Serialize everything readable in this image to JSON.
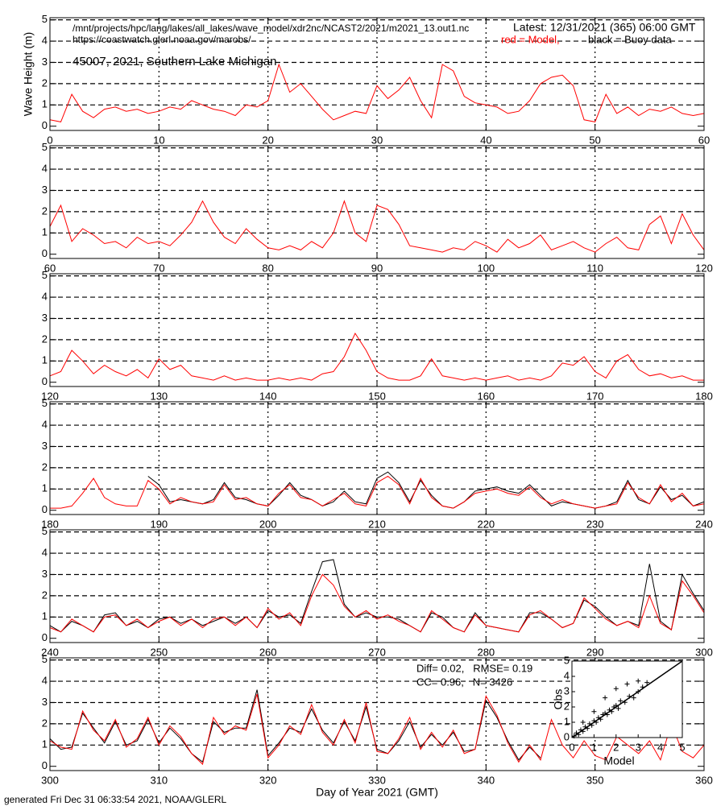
{
  "header": {
    "path": "/mnt/projects/hpc/lang/lakes/all_lakes/wave_model/xdr2nc/NCAST2/2021/m2021_13.out1.nc",
    "url": "https://coastwatch.glerl.noaa.gov/marobs/",
    "station": "45007, 2021, Southern Lake Michigan",
    "latest": "Latest: 12/31/2021 (365) 06:00 GMT",
    "legend_model": "red = Model,",
    "legend_buoy": "black = Buoy data"
  },
  "footer": "generated Fri Dec 31 06:33:54 2021, NOAA/GLERL",
  "chart_data": [
    {
      "type": "line",
      "ylabel": "Wave Height (m)",
      "xlim": [
        0,
        60
      ],
      "xticks": [
        0,
        10,
        20,
        30,
        40,
        50,
        60
      ],
      "ylim": [
        -0.2,
        5.1
      ],
      "yticks": [
        0,
        1,
        2,
        3,
        4,
        5
      ],
      "grid": true,
      "x": [
        0,
        1,
        2,
        3,
        4,
        5,
        6,
        7,
        8,
        9,
        10,
        11,
        12,
        13,
        14,
        15,
        16,
        17,
        18,
        19,
        20,
        21,
        22,
        23,
        24,
        25,
        26,
        27,
        28,
        29,
        30,
        31,
        32,
        33,
        34,
        35,
        36,
        37,
        38,
        39,
        40,
        41,
        42,
        43,
        44,
        45,
        46,
        47,
        48,
        49,
        50,
        51,
        52,
        53,
        54,
        55,
        56,
        57,
        58,
        59,
        60
      ],
      "series": [
        {
          "color": "#ff0000",
          "values": [
            0.3,
            0.2,
            1.5,
            0.7,
            0.4,
            0.8,
            0.9,
            0.7,
            0.8,
            0.6,
            0.7,
            0.9,
            0.8,
            1.2,
            1.0,
            0.8,
            0.7,
            0.5,
            1.0,
            0.9,
            1.2,
            2.9,
            1.6,
            2.0,
            1.4,
            0.8,
            0.3,
            0.5,
            0.7,
            0.6,
            1.9,
            1.3,
            1.7,
            2.3,
            1.2,
            0.4,
            2.9,
            2.6,
            1.4,
            1.1,
            1.0,
            0.9,
            0.6,
            0.7,
            1.2,
            2.0,
            2.3,
            2.4,
            1.9,
            0.3,
            0.2,
            1.5,
            0.6,
            0.9,
            0.5,
            0.8,
            0.7,
            0.9,
            0.6,
            0.5,
            0.6
          ]
        }
      ]
    },
    {
      "type": "line",
      "xlim": [
        60,
        120
      ],
      "xticks": [
        60,
        70,
        80,
        90,
        100,
        110,
        120
      ],
      "ylim": [
        -0.2,
        5.1
      ],
      "yticks": [
        0,
        1,
        2,
        3,
        4,
        5
      ],
      "grid": true,
      "x": [
        60,
        61,
        62,
        63,
        64,
        65,
        66,
        67,
        68,
        69,
        70,
        71,
        72,
        73,
        74,
        75,
        76,
        77,
        78,
        79,
        80,
        81,
        82,
        83,
        84,
        85,
        86,
        87,
        88,
        89,
        90,
        91,
        92,
        93,
        94,
        95,
        96,
        97,
        98,
        99,
        100,
        101,
        102,
        103,
        104,
        105,
        106,
        107,
        108,
        109,
        110,
        111,
        112,
        113,
        114,
        115,
        116,
        117,
        118,
        119,
        120
      ],
      "series": [
        {
          "color": "#ff0000",
          "values": [
            1.3,
            2.3,
            0.6,
            1.2,
            0.9,
            0.5,
            0.6,
            0.3,
            0.8,
            0.5,
            0.6,
            0.4,
            0.9,
            1.5,
            2.5,
            1.5,
            0.8,
            0.5,
            1.2,
            0.7,
            0.3,
            0.2,
            0.4,
            0.2,
            0.6,
            0.3,
            1.0,
            2.5,
            1.0,
            0.6,
            2.3,
            2.1,
            1.4,
            0.4,
            0.3,
            0.2,
            0.1,
            0.3,
            0.2,
            0.6,
            0.4,
            0.1,
            0.7,
            0.3,
            0.5,
            0.9,
            0.2,
            0.4,
            0.6,
            0.3,
            0.1,
            0.5,
            0.8,
            0.3,
            0.2,
            1.4,
            1.8,
            0.5,
            1.9,
            0.9,
            0.2
          ]
        }
      ]
    },
    {
      "type": "line",
      "xlim": [
        120,
        180
      ],
      "xticks": [
        120,
        130,
        140,
        150,
        160,
        170,
        180
      ],
      "ylim": [
        -0.2,
        5.1
      ],
      "yticks": [
        0,
        1,
        2,
        3,
        4,
        5
      ],
      "grid": true,
      "x": [
        120,
        121,
        122,
        123,
        124,
        125,
        126,
        127,
        128,
        129,
        130,
        131,
        132,
        133,
        134,
        135,
        136,
        137,
        138,
        139,
        140,
        141,
        142,
        143,
        144,
        145,
        146,
        147,
        148,
        149,
        150,
        151,
        152,
        153,
        154,
        155,
        156,
        157,
        158,
        159,
        160,
        161,
        162,
        163,
        164,
        165,
        166,
        167,
        168,
        169,
        170,
        171,
        172,
        173,
        174,
        175,
        176,
        177,
        178,
        179,
        180
      ],
      "series": [
        {
          "color": "#ff0000",
          "values": [
            0.3,
            0.5,
            1.5,
            1.0,
            0.4,
            0.8,
            0.5,
            0.3,
            0.6,
            0.2,
            1.1,
            0.6,
            0.8,
            0.3,
            0.2,
            0.1,
            0.3,
            0.1,
            0.2,
            0.1,
            0.1,
            0.2,
            0.1,
            0.2,
            0.1,
            0.4,
            0.5,
            1.2,
            2.3,
            1.5,
            0.5,
            0.2,
            0.1,
            0.1,
            0.3,
            1.1,
            0.3,
            0.2,
            0.1,
            0.2,
            0.1,
            0.2,
            0.3,
            0.1,
            0.2,
            0.1,
            0.3,
            0.9,
            0.8,
            1.2,
            0.5,
            0.2,
            1.0,
            1.3,
            0.6,
            0.3,
            0.4,
            0.2,
            0.3,
            0.1,
            0.1
          ]
        }
      ]
    },
    {
      "type": "line",
      "xlim": [
        180,
        240
      ],
      "xticks": [
        180,
        190,
        200,
        210,
        220,
        230,
        240
      ],
      "ylim": [
        -0.2,
        5.1
      ],
      "yticks": [
        0,
        1,
        2,
        3,
        4,
        5
      ],
      "grid": true,
      "x": [
        180,
        181,
        182,
        183,
        184,
        185,
        186,
        187,
        188,
        189,
        190,
        191,
        192,
        193,
        194,
        195,
        196,
        197,
        198,
        199,
        200,
        201,
        202,
        203,
        204,
        205,
        206,
        207,
        208,
        209,
        210,
        211,
        212,
        213,
        214,
        215,
        216,
        217,
        218,
        219,
        220,
        221,
        222,
        223,
        224,
        225,
        226,
        227,
        228,
        229,
        230,
        231,
        232,
        233,
        234,
        235,
        236,
        237,
        238,
        239,
        240
      ],
      "series": [
        {
          "color": "#000000",
          "values": [
            null,
            null,
            null,
            null,
            null,
            null,
            null,
            null,
            null,
            1.6,
            1.2,
            0.4,
            0.5,
            0.4,
            0.3,
            0.5,
            1.3,
            0.6,
            0.5,
            0.3,
            0.2,
            0.7,
            1.3,
            0.7,
            0.5,
            0.2,
            0.4,
            0.9,
            0.4,
            0.3,
            1.5,
            1.8,
            1.3,
            0.4,
            1.4,
            0.7,
            0.2,
            0.1,
            0.4,
            0.9,
            1.0,
            1.1,
            0.9,
            0.8,
            1.2,
            0.7,
            0.2,
            0.4,
            0.3,
            0.2,
            0.1,
            0.2,
            0.4,
            1.4,
            0.5,
            0.3,
            1.1,
            0.5,
            0.7,
            0.2,
            0.4
          ]
        },
        {
          "color": "#ff0000",
          "values": [
            0.1,
            0.1,
            0.2,
            0.8,
            1.5,
            0.6,
            0.3,
            0.2,
            0.2,
            1.4,
            1.0,
            0.3,
            0.6,
            0.4,
            0.3,
            0.4,
            1.2,
            0.5,
            0.6,
            0.3,
            0.2,
            0.8,
            1.2,
            0.6,
            0.5,
            0.2,
            0.5,
            0.8,
            0.3,
            0.2,
            1.3,
            1.6,
            1.2,
            0.3,
            1.5,
            0.6,
            0.2,
            0.1,
            0.4,
            0.8,
            0.9,
            1.0,
            0.8,
            0.7,
            1.1,
            0.6,
            0.3,
            0.5,
            0.3,
            0.2,
            0.1,
            0.2,
            0.3,
            1.3,
            0.6,
            0.3,
            1.2,
            0.4,
            0.8,
            0.2,
            0.3
          ]
        }
      ]
    },
    {
      "type": "line",
      "xlim": [
        240,
        300
      ],
      "xticks": [
        240,
        250,
        260,
        270,
        280,
        290,
        300
      ],
      "ylim": [
        -0.2,
        5.1
      ],
      "yticks": [
        0,
        1,
        2,
        3,
        4,
        5
      ],
      "grid": true,
      "x": [
        240,
        241,
        242,
        243,
        244,
        245,
        246,
        247,
        248,
        249,
        250,
        251,
        252,
        253,
        254,
        255,
        256,
        257,
        258,
        259,
        260,
        261,
        262,
        263,
        264,
        265,
        266,
        267,
        268,
        269,
        270,
        271,
        272,
        273,
        274,
        275,
        276,
        277,
        278,
        279,
        280,
        281,
        282,
        283,
        284,
        285,
        286,
        287,
        288,
        289,
        290,
        291,
        292,
        293,
        294,
        295,
        296,
        297,
        298,
        299,
        300
      ],
      "series": [
        {
          "color": "#000000",
          "values": [
            0.6,
            0.3,
            0.8,
            0.6,
            0.3,
            1.1,
            1.2,
            0.6,
            0.8,
            0.5,
            0.9,
            1.0,
            0.7,
            0.9,
            0.6,
            0.8,
            1.0,
            0.7,
            1.0,
            0.5,
            1.3,
            1.0,
            1.1,
            0.7,
            2.2,
            3.6,
            3.7,
            1.6,
            1.0,
            1.2,
            1.0,
            1.0,
            0.9,
            0.6,
            0.3,
            1.2,
            1.0,
            0.5,
            0.3,
            1.2,
            0.6,
            0.5,
            0.4,
            0.3,
            1.2,
            1.2,
            0.9,
            0.5,
            0.7,
            1.8,
            1.5,
            1.0,
            0.6,
            0.8,
            0.6,
            3.5,
            0.8,
            0.4,
            3.0,
            2.1,
            1.3
          ]
        },
        {
          "color": "#ff0000",
          "values": [
            0.5,
            0.3,
            0.9,
            0.6,
            0.3,
            1.0,
            1.1,
            0.6,
            0.9,
            0.5,
            0.8,
            1.0,
            0.6,
            0.9,
            0.5,
            0.9,
            1.0,
            0.6,
            1.0,
            0.5,
            1.4,
            0.9,
            1.2,
            0.6,
            2.0,
            3.0,
            2.5,
            1.5,
            1.0,
            1.3,
            0.9,
            1.1,
            0.8,
            0.6,
            0.3,
            1.3,
            0.9,
            0.5,
            0.3,
            1.1,
            0.6,
            0.5,
            0.4,
            0.3,
            1.1,
            1.3,
            0.9,
            0.5,
            0.7,
            1.9,
            1.4,
            0.9,
            0.6,
            0.8,
            0.5,
            2.0,
            0.7,
            0.4,
            2.7,
            2.0,
            1.2
          ]
        }
      ]
    },
    {
      "type": "line",
      "xlabel": "Day of Year 2021 (GMT)",
      "xlim": [
        300,
        360
      ],
      "xticks": [
        300,
        310,
        320,
        330,
        340,
        350,
        360
      ],
      "ylim": [
        -0.2,
        5.1
      ],
      "yticks": [
        0,
        1,
        2,
        3,
        4,
        5
      ],
      "grid": true,
      "annotations": [
        "Diff= 0.02,   RMSE= 0.19",
        "CC= 0.96,   N= 3426"
      ],
      "x": [
        300,
        301,
        302,
        303,
        304,
        305,
        306,
        307,
        308,
        309,
        310,
        311,
        312,
        313,
        314,
        315,
        316,
        317,
        318,
        319,
        320,
        321,
        322,
        323,
        324,
        325,
        326,
        327,
        328,
        329,
        330,
        331,
        332,
        333,
        334,
        335,
        336,
        337,
        338,
        339,
        340,
        341,
        342,
        343,
        344,
        345,
        346,
        347,
        348,
        349,
        350,
        351,
        352,
        353,
        354,
        355,
        356,
        357,
        358,
        359,
        360
      ],
      "series": [
        {
          "color": "#000000",
          "values": [
            1.3,
            0.8,
            0.9,
            2.5,
            1.8,
            1.1,
            2.1,
            1.0,
            1.2,
            2.2,
            1.1,
            1.8,
            1.3,
            0.6,
            0.2,
            2.1,
            1.6,
            1.8,
            1.8,
            3.6,
            0.5,
            1.1,
            1.8,
            1.6,
            2.7,
            1.7,
            1.1,
            2.1,
            1.2,
            2.8,
            0.8,
            0.6,
            1.2,
            2.1,
            0.9,
            1.5,
            1.0,
            1.6,
            0.7,
            0.8,
            3.1,
            2.3,
            1.2,
            0.3,
            0.9,
            0.4,
            null,
            null,
            null,
            null,
            null,
            null,
            null,
            null,
            null,
            null,
            null,
            null,
            null,
            null,
            null
          ]
        },
        {
          "color": "#ff0000",
          "values": [
            1.2,
            0.9,
            0.8,
            2.6,
            1.7,
            1.2,
            2.2,
            0.9,
            1.3,
            2.3,
            1.0,
            1.9,
            1.4,
            0.6,
            0.1,
            2.3,
            1.5,
            1.9,
            1.7,
            3.4,
            0.4,
            1.0,
            1.9,
            1.5,
            2.9,
            1.6,
            1.0,
            2.2,
            1.1,
            3.0,
            0.7,
            0.6,
            1.3,
            2.3,
            0.8,
            1.6,
            0.9,
            1.7,
            0.6,
            0.8,
            3.3,
            2.4,
            1.1,
            0.2,
            1.0,
            0.3,
            2.2,
            1.0,
            0.4,
            1.2,
            0.5,
            0.3,
            1.4,
            1.0,
            0.6,
            1.2,
            0.3,
            2.0,
            0.7,
            0.4,
            1.0
          ]
        }
      ]
    },
    {
      "type": "scatter",
      "xlabel": "Model",
      "ylabel": "Obs",
      "xlim": [
        0,
        5
      ],
      "ylim": [
        0,
        5
      ],
      "xticks": [
        0,
        1,
        2,
        3,
        4,
        5
      ],
      "yticks": [
        0,
        1,
        2,
        3,
        4,
        5
      ],
      "color": "#000000",
      "x": [
        0.1,
        0.2,
        0.3,
        0.4,
        0.5,
        0.6,
        0.7,
        0.8,
        0.9,
        1.0,
        1.1,
        1.2,
        1.3,
        1.4,
        1.5,
        1.6,
        1.7,
        1.8,
        1.9,
        2.0,
        2.1,
        2.2,
        2.4,
        2.6,
        2.8,
        3.0,
        3.2,
        3.4,
        0.5,
        1.0,
        1.5,
        2.0,
        2.5,
        3.0
      ],
      "values": [
        0.1,
        0.3,
        0.2,
        0.5,
        0.4,
        0.7,
        0.6,
        0.9,
        0.8,
        1.1,
        1.0,
        1.3,
        1.2,
        1.5,
        1.6,
        1.5,
        1.8,
        1.7,
        2.0,
        2.1,
        1.9,
        2.4,
        2.3,
        2.7,
        2.6,
        3.0,
        3.3,
        3.6,
        1.0,
        1.7,
        2.6,
        3.2,
        3.5,
        3.7
      ]
    }
  ]
}
